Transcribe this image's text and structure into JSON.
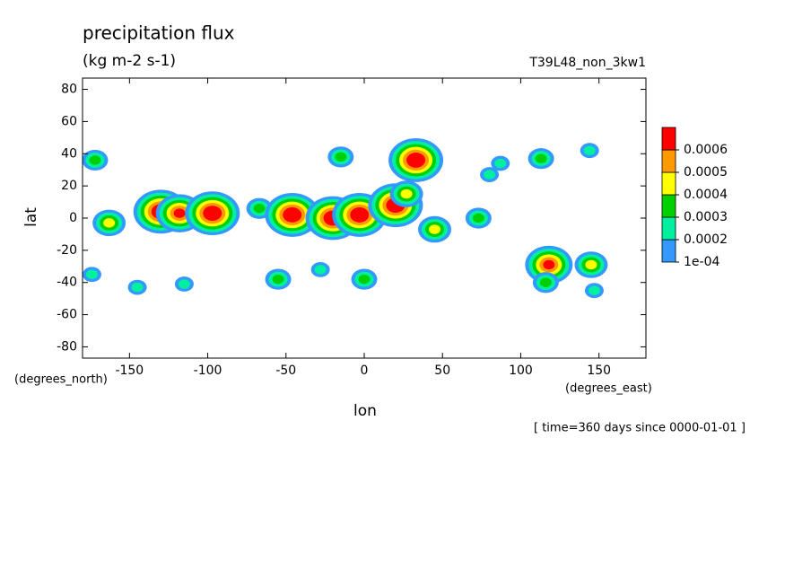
{
  "chart_data": {
    "type": "contour",
    "title": "precipitation flux",
    "subtitle": "(kg m-2 s-1)",
    "annotation": "T39L48_non_3kw1",
    "x_label": "lon",
    "y_label": "lat",
    "x_units": "(degrees_east)",
    "y_units": "(degrees_north)",
    "footer": "[ time=360 days since 0000-01-01 ]",
    "xlim": [
      -180,
      180
    ],
    "ylim": [
      -87,
      87
    ],
    "xticks": [
      -150,
      -100,
      -50,
      0,
      50,
      100,
      150
    ],
    "yticks": [
      -80,
      -60,
      -40,
      -20,
      0,
      20,
      40,
      60,
      80
    ],
    "levels": [
      {
        "value": 0.0001,
        "label": "1e-04"
      },
      0.0002,
      0.0003,
      0.0004,
      0.0005,
      0.0006
    ],
    "colors": [
      "#3399ff",
      "#00f0a0",
      "#00d000",
      "#ffff00",
      "#ff9900",
      "#ff0000"
    ],
    "x": [
      -172,
      -163,
      -130,
      -118,
      -97,
      -67,
      -46,
      -20,
      -3,
      20,
      33,
      27,
      45,
      -15,
      73,
      87,
      113,
      144,
      118,
      145,
      116,
      -174,
      -55,
      0,
      -28,
      -145,
      -115,
      147,
      80
    ],
    "y": [
      36,
      -3,
      4,
      3,
      3,
      6,
      2,
      0,
      2,
      8,
      36,
      15,
      -7,
      38,
      0,
      34,
      37,
      42,
      -29,
      -29,
      -40,
      -35,
      -38,
      -38,
      -32,
      -43,
      -41,
      -45,
      27
    ],
    "values": [
      0.0003,
      0.0004,
      0.0007,
      0.0006,
      0.0007,
      0.0003,
      0.0007,
      0.0007,
      0.0007,
      0.0007,
      0.0007,
      0.0004,
      0.0004,
      0.0003,
      0.0003,
      0.0002,
      0.0003,
      0.0002,
      0.0006,
      0.0004,
      0.0003,
      0.0002,
      0.0003,
      0.0003,
      0.0002,
      0.0002,
      0.0002,
      0.0002,
      0.0002
    ]
  }
}
